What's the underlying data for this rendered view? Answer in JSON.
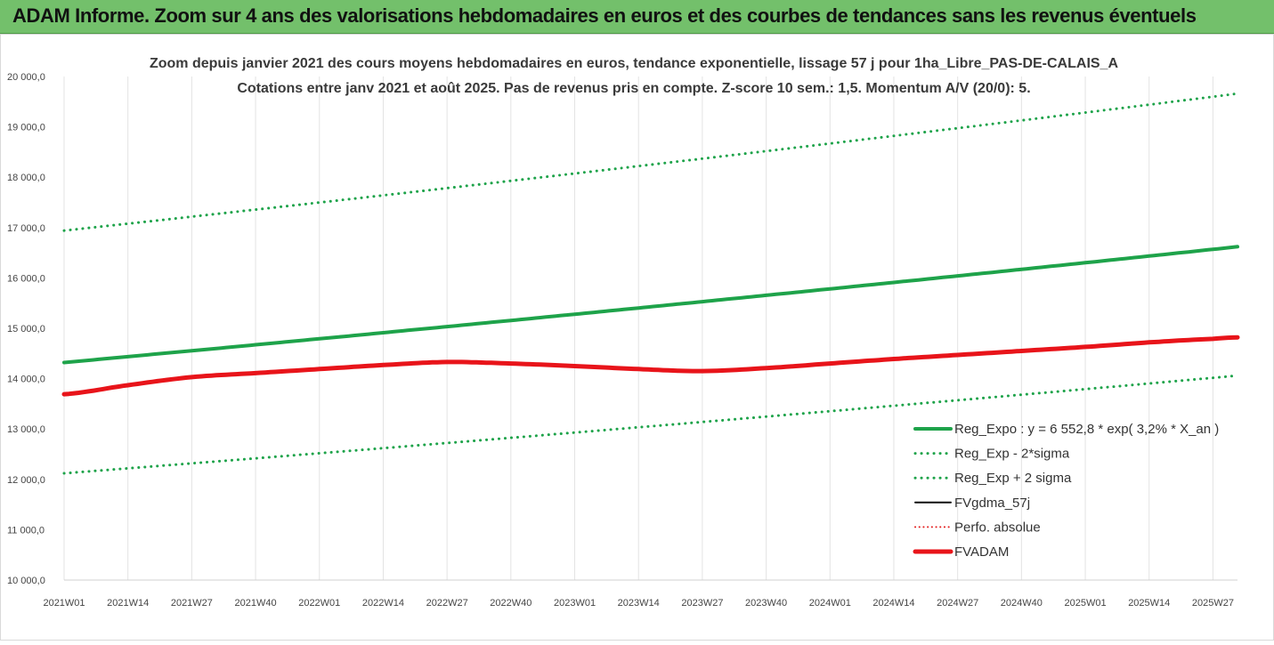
{
  "banner_title": "ADAM Informe. Zoom sur 4 ans des valorisations hebdomadaires en euros et des courbes de tendances sans les revenus éventuels",
  "chart_data": {
    "type": "line",
    "title": "Zoom depuis janvier 2021 des cours moyens hebdomadaires en euros, tendance exponentielle, lissage 57 j pour 1ha_Libre_PAS-DE-CALAIS_A",
    "subtitle": "Cotations entre janv 2021 et août 2025.  Pas de revenus pris en compte. Z-score 10 sem.: 1,5. Momentum A/V (20/0): 5.",
    "ylim": [
      10000,
      20000
    ],
    "y_ticks": [
      "10 000,0",
      "11 000,0",
      "12 000,0",
      "13 000,0",
      "14 000,0",
      "15 000,0",
      "16 000,0",
      "17 000,0",
      "18 000,0",
      "19 000,0",
      "20 000,0"
    ],
    "x_ticks": [
      "2021W01",
      "2021W14",
      "2021W27",
      "2021W40",
      "2022W01",
      "2022W14",
      "2022W27",
      "2022W40",
      "2023W01",
      "2023W14",
      "2023W27",
      "2023W40",
      "2024W01",
      "2024W14",
      "2024W27",
      "2024W40",
      "2025W01",
      "2025W14",
      "2025W27"
    ],
    "x_last": "2025W32",
    "grid": "vertical",
    "legend_position": "bottom-right",
    "series": [
      {
        "name": "Reg_Expo : y = 6 552,8 * exp( 3,2% *  X_an )",
        "color": "#1ea34a",
        "style": "solid",
        "width": 4,
        "x": [
          "2021W01",
          "2025W32"
        ],
        "y": [
          14320,
          16620
        ],
        "curve": "exponential"
      },
      {
        "name": "Reg_Exp - 2*sigma",
        "color": "#1ea34a",
        "style": "dotted",
        "width": 3,
        "x": [
          "2021W01",
          "2025W32"
        ],
        "y": [
          12120,
          14060
        ],
        "curve": "exponential"
      },
      {
        "name": "Reg_Exp + 2 sigma",
        "color": "#1ea34a",
        "style": "dotted",
        "width": 3,
        "x": [
          "2021W01",
          "2025W32"
        ],
        "y": [
          16940,
          19660
        ],
        "curve": "exponential"
      },
      {
        "name": "FVgdma_57j",
        "color": "#111111",
        "style": "solid",
        "width": 2,
        "x": [
          "2021W01",
          "2021W14",
          "2021W27",
          "2021W40",
          "2022W01",
          "2022W14",
          "2022W27",
          "2022W40",
          "2023W01",
          "2023W14",
          "2023W27",
          "2023W40",
          "2024W01",
          "2024W14",
          "2024W27",
          "2024W40",
          "2025W01",
          "2025W14",
          "2025W27",
          "2025W32"
        ],
        "y": [
          13690,
          13870,
          14030,
          14110,
          14190,
          14270,
          14330,
          14300,
          14250,
          14190,
          14150,
          14210,
          14300,
          14390,
          14470,
          14550,
          14630,
          14720,
          14790,
          14820
        ]
      },
      {
        "name": "Perfo. absolue",
        "color": "#e31c1c",
        "style": "dotted",
        "width": 2,
        "x": [],
        "y": []
      },
      {
        "name": "FVADAM",
        "color": "#e8141a",
        "style": "solid",
        "width": 5,
        "x": [
          "2021W01",
          "2021W14",
          "2021W27",
          "2021W40",
          "2022W01",
          "2022W14",
          "2022W27",
          "2022W40",
          "2023W01",
          "2023W14",
          "2023W27",
          "2023W40",
          "2024W01",
          "2024W14",
          "2024W27",
          "2024W40",
          "2025W01",
          "2025W14",
          "2025W27",
          "2025W32"
        ],
        "y": [
          13690,
          13870,
          14030,
          14110,
          14190,
          14270,
          14330,
          14300,
          14250,
          14190,
          14150,
          14210,
          14300,
          14390,
          14470,
          14550,
          14630,
          14720,
          14790,
          14820
        ]
      }
    ]
  }
}
